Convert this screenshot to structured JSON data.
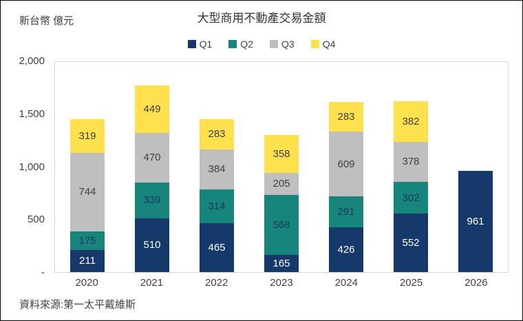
{
  "header": {
    "unit_label": "新台幣 億元",
    "title": "大型商用不動產交易金額"
  },
  "footer": {
    "source": "資料來源:第一太平戴維斯"
  },
  "chart_data": {
    "type": "bar",
    "stacked": true,
    "title": "大型商用不動產交易金額",
    "unit": "新台幣 億元",
    "categories": [
      "2020",
      "2021",
      "2022",
      "2023",
      "2024",
      "2025",
      "2026"
    ],
    "series": [
      {
        "name": "Q1",
        "color": "#15396b",
        "label_color": "#ffffff",
        "values": [
          211,
          510,
          465,
          165,
          426,
          552,
          961
        ]
      },
      {
        "name": "Q2",
        "color": "#17857c",
        "label_color": "#16395f",
        "values": [
          175,
          339,
          314,
          568,
          291,
          302,
          null
        ]
      },
      {
        "name": "Q3",
        "color": "#bfbfbf",
        "label_color": "#3f3f3f",
        "values": [
          744,
          470,
          384,
          205,
          609,
          378,
          null
        ]
      },
      {
        "name": "Q4",
        "color": "#ffe04d",
        "label_color": "#3f3f3f",
        "values": [
          319,
          449,
          283,
          358,
          283,
          382,
          null
        ]
      }
    ],
    "ylim": [
      0,
      2000
    ],
    "yticks": [
      {
        "value": 2000,
        "label": "2,000"
      },
      {
        "value": 1500,
        "label": "1,500"
      },
      {
        "value": 1000,
        "label": "1,000"
      },
      {
        "value": 500,
        "label": "500"
      },
      {
        "value": 0,
        "label": "-"
      }
    ],
    "legend_position": "top",
    "grid": false,
    "source": "資料來源:第一太平戴維斯"
  }
}
